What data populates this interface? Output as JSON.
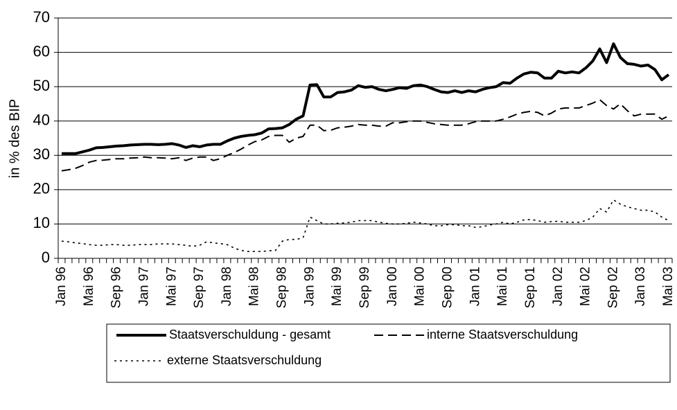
{
  "chart_data": {
    "type": "line",
    "y_label": "in % des BIP",
    "categories": [
      "Jan 96",
      null,
      null,
      null,
      "Mai 96",
      null,
      null,
      null,
      "Sep 96",
      null,
      null,
      null,
      "Jan 97",
      null,
      null,
      null,
      "Mai 97",
      null,
      null,
      null,
      "Sep 97",
      null,
      null,
      null,
      "Jan 98",
      null,
      null,
      null,
      "Mai 98",
      null,
      null,
      null,
      "Sep 98",
      null,
      null,
      null,
      "Jan 99",
      null,
      null,
      null,
      "Mai 99",
      null,
      null,
      null,
      "Sep 99",
      null,
      null,
      null,
      "Jan 00",
      null,
      null,
      null,
      "Mai 00",
      null,
      null,
      null,
      "Sep 00",
      null,
      null,
      null,
      "Jan 01",
      null,
      null,
      null,
      "Mai 01",
      null,
      null,
      null,
      "Sep 01",
      null,
      null,
      null,
      "Jan 02",
      null,
      null,
      null,
      "Mai 02",
      null,
      null,
      null,
      "Sep 02",
      null,
      null,
      null,
      "Jan 03",
      null,
      null,
      null,
      "Mai 03"
    ],
    "series": [
      {
        "name": "Staatsverschuldung - gesamt",
        "color": "#000000",
        "style": "solid",
        "values": [
          30.5,
          30.5,
          30.5,
          31,
          31.5,
          32.2,
          32.3,
          32.5,
          32.7,
          32.8,
          33,
          33.1,
          33.2,
          33.2,
          33.1,
          33.2,
          33.4,
          33,
          32.3,
          32.8,
          32.5,
          33,
          33.2,
          33.2,
          34.2,
          35,
          35.5,
          35.8,
          36,
          36.5,
          37.7,
          37.8,
          38,
          39,
          40.5,
          41.5,
          50.5,
          50.6,
          47,
          47,
          48.3,
          48.5,
          49,
          50.3,
          49.8,
          50,
          49.2,
          48.8,
          49.2,
          49.7,
          49.5,
          50.3,
          50.5,
          50,
          49.2,
          48.5,
          48.3,
          48.8,
          48.3,
          48.8,
          48.5,
          49.2,
          49.7,
          50,
          51.2,
          51,
          52.5,
          53.7,
          54.2,
          54,
          52.5,
          52.5,
          54.5,
          54,
          54.3,
          54,
          55.5,
          57.5,
          61,
          57,
          62.5,
          58.5,
          56.7,
          56.5,
          56,
          56.3,
          55,
          52,
          53.5
        ]
      },
      {
        "name": "interne Staatsverschuldung",
        "color": "#000000",
        "style": "dashed",
        "values": [
          25.5,
          25.8,
          26.2,
          27,
          28,
          28.5,
          28.6,
          28.8,
          29,
          29,
          29.2,
          29.3,
          29.5,
          29.3,
          29.3,
          29.2,
          29,
          29.3,
          28.5,
          29.2,
          29.5,
          29.5,
          28.5,
          29,
          30,
          30.8,
          31.8,
          33,
          34,
          34.5,
          35.5,
          35.8,
          35.8,
          33.8,
          35,
          35.5,
          38.8,
          38.8,
          37.2,
          37.3,
          38,
          38.2,
          38.5,
          39,
          38.8,
          38.8,
          38.5,
          38.5,
          39.5,
          39.5,
          39.8,
          40,
          40,
          39.6,
          39.2,
          39,
          38.8,
          38.8,
          38.8,
          39.2,
          39.8,
          40,
          40,
          40,
          40.5,
          41.2,
          42,
          42.5,
          42.8,
          42.5,
          41.5,
          42.3,
          43.5,
          43.8,
          43.8,
          43.8,
          44.5,
          45.2,
          46.2,
          44.5,
          43.5,
          45,
          43,
          41.5,
          42,
          42,
          42,
          40.5,
          41.5
        ]
      },
      {
        "name": "externe Staatsverschuldung",
        "color": "#000000",
        "style": "dotted",
        "values": [
          5,
          4.8,
          4.5,
          4.3,
          4,
          3.8,
          3.8,
          4,
          4,
          3.8,
          3.8,
          4,
          4,
          4,
          4.2,
          4.2,
          4.2,
          4,
          3.8,
          3.5,
          3.8,
          4.8,
          4.5,
          4.3,
          4,
          3,
          2.3,
          2,
          2,
          2,
          2.2,
          2.3,
          5,
          5.5,
          5.5,
          6,
          12,
          11,
          10,
          10,
          10.2,
          10.3,
          10.5,
          11,
          11,
          11,
          10.5,
          10.2,
          10,
          10,
          10.2,
          10.5,
          10.3,
          10,
          9.5,
          9.5,
          9.8,
          9.8,
          9.5,
          9.5,
          9,
          9.2,
          9.7,
          10,
          10.5,
          10,
          10.5,
          11.2,
          11.3,
          11,
          10.5,
          10.7,
          10.8,
          10.5,
          10.5,
          10.5,
          11,
          12,
          14.5,
          13.5,
          17,
          15.8,
          15,
          14.5,
          14,
          14,
          13.5,
          12,
          11
        ]
      }
    ],
    "ylim": [
      0,
      70
    ],
    "yticks": [
      0,
      10,
      20,
      30,
      40,
      50,
      60,
      70
    ],
    "grid": true
  }
}
